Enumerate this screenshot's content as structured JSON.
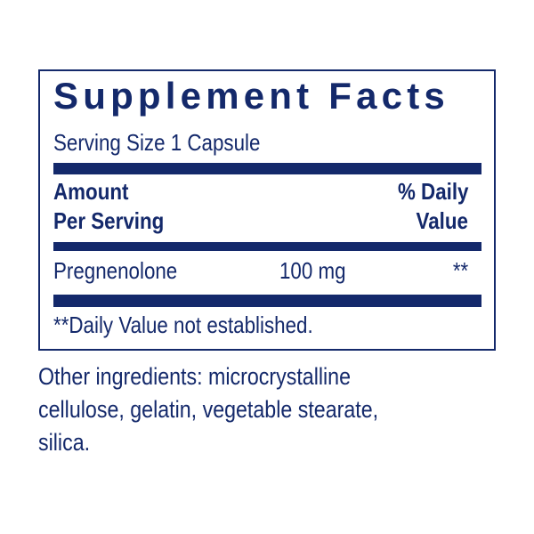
{
  "panel": {
    "title": "Supplement Facts",
    "serving_size": "Serving Size 1 Capsule",
    "header_left_1": "Amount",
    "header_left_2": "Per Serving",
    "header_right_1": "% Daily",
    "header_right_2": "Value",
    "rows": [
      {
        "name": "Pregnenolone",
        "amount": "100 mg",
        "dv": "**"
      }
    ],
    "footnote": "**Daily Value not established."
  },
  "other_ingredients": {
    "line1": "Other ingredients: microcrystalline",
    "line2": "cellulose, gelatin, vegetable stearate,",
    "line3": "silica."
  },
  "colors": {
    "ink": "#14296b"
  }
}
